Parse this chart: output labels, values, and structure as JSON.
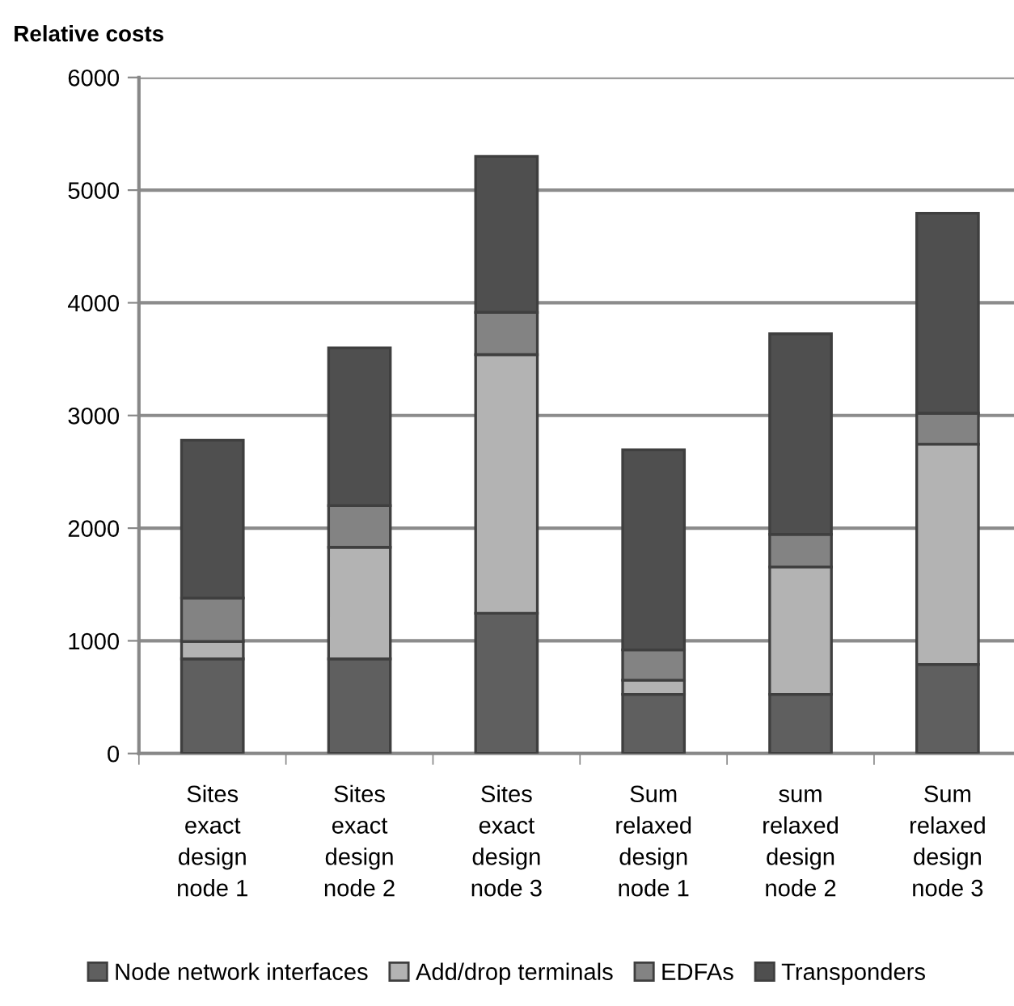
{
  "chart_data": {
    "type": "bar",
    "title": "Relative costs",
    "stacked": true,
    "categories": [
      "Sites\nexact\ndesign\nnode 1",
      "Sites\nexact\ndesign\nnode 2",
      "Sites\nexact\ndesign\nnode 3",
      "Sum\nrelaxed\ndesign\nnode 1",
      "sum\nrelaxed\ndesign\nnode 2",
      "Sum\nrelaxed\ndesign\nnode 3"
    ],
    "series": [
      {
        "name": "Node network interfaces",
        "color": "#5f5f5f",
        "values": [
          840,
          840,
          1245,
          525,
          525,
          790
        ]
      },
      {
        "name": "Add/drop terminals",
        "color": "#b3b3b3",
        "values": [
          155,
          990,
          2295,
          125,
          1130,
          1955
        ]
      },
      {
        "name": "EDFAs",
        "color": "#838383",
        "values": [
          385,
          370,
          375,
          270,
          290,
          275
        ]
      },
      {
        "name": "Transponders",
        "color": "#4f4f4f",
        "values": [
          1400,
          1400,
          1385,
          1775,
          1780,
          1775
        ]
      }
    ],
    "ylim": [
      0,
      6000
    ],
    "yticks": [
      0,
      1000,
      2000,
      3000,
      4000,
      5000,
      6000
    ],
    "grid": "y",
    "legend": "bottom"
  }
}
